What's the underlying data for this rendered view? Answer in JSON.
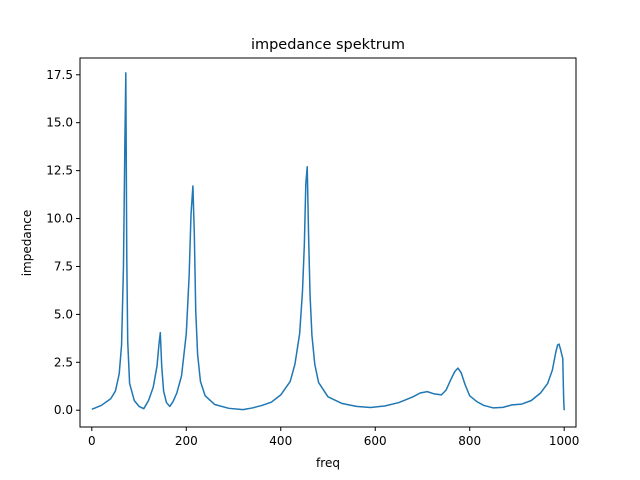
{
  "chart_data": {
    "type": "line",
    "title": "impedance spektrum",
    "xlabel": "freq",
    "ylabel": "impedance",
    "xlim": [
      -25,
      1025
    ],
    "ylim": [
      -0.875,
      18.375
    ],
    "x_ticks": [
      0,
      200,
      400,
      600,
      800,
      1000
    ],
    "x_tick_labels": [
      "0",
      "200",
      "400",
      "600",
      "800",
      "1000"
    ],
    "y_ticks": [
      0.0,
      2.5,
      5.0,
      7.5,
      10.0,
      12.5,
      15.0,
      17.5
    ],
    "y_tick_labels": [
      "0.0",
      "2.5",
      "5.0",
      "7.5",
      "10.0",
      "12.5",
      "15.0",
      "17.5"
    ],
    "grid": false,
    "line_color": "#1f77b4",
    "series": [
      {
        "x": [
          0,
          20,
          40,
          50,
          58,
          63,
          67,
          70,
          72,
          74,
          76,
          80,
          90,
          100,
          110,
          120,
          130,
          138,
          142,
          145,
          148,
          152,
          158,
          165,
          172,
          180,
          190,
          200,
          206,
          210,
          214,
          217,
          220,
          224,
          230,
          240,
          260,
          290,
          320,
          340,
          360,
          380,
          400,
          420,
          430,
          440,
          446,
          450,
          453,
          456,
          459,
          462,
          466,
          472,
          480,
          500,
          530,
          560,
          590,
          620,
          650,
          680,
          695,
          710,
          725,
          740,
          750,
          760,
          768,
          775,
          782,
          790,
          800,
          815,
          830,
          850,
          870,
          890,
          910,
          930,
          950,
          965,
          975,
          982,
          986,
          989,
          992,
          995,
          997,
          998,
          999,
          1000
        ],
        "y": [
          0.05,
          0.25,
          0.6,
          1.0,
          1.9,
          3.4,
          7.5,
          14.0,
          17.6,
          8.0,
          3.6,
          1.4,
          0.5,
          0.2,
          0.08,
          0.5,
          1.2,
          2.3,
          3.4,
          4.05,
          2.3,
          1.0,
          0.4,
          0.2,
          0.45,
          0.9,
          1.8,
          4.0,
          7.0,
          10.2,
          11.7,
          9.2,
          5.2,
          2.9,
          1.5,
          0.75,
          0.3,
          0.1,
          0.03,
          0.12,
          0.25,
          0.42,
          0.8,
          1.5,
          2.4,
          4.0,
          6.2,
          8.7,
          11.8,
          12.7,
          9.0,
          6.0,
          3.9,
          2.4,
          1.45,
          0.7,
          0.35,
          0.2,
          0.14,
          0.22,
          0.4,
          0.7,
          0.9,
          0.97,
          0.85,
          0.8,
          1.05,
          1.6,
          2.0,
          2.2,
          1.95,
          1.35,
          0.75,
          0.45,
          0.25,
          0.12,
          0.15,
          0.28,
          0.32,
          0.5,
          0.9,
          1.4,
          2.1,
          3.0,
          3.4,
          3.45,
          3.2,
          2.9,
          2.7,
          1.5,
          0.5,
          0.0
        ]
      }
    ]
  }
}
